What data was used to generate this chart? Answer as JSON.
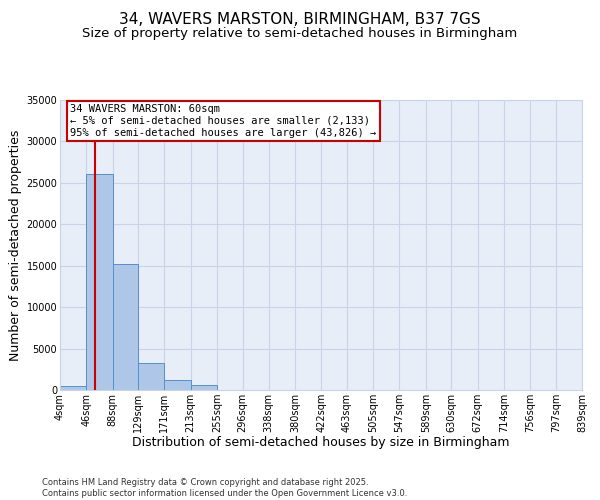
{
  "title_line1": "34, WAVERS MARSTON, BIRMINGHAM, B37 7GS",
  "title_line2": "Size of property relative to semi-detached houses in Birmingham",
  "xlabel": "Distribution of semi-detached houses by size in Birmingham",
  "ylabel": "Number of semi-detached properties",
  "bin_edges": [
    4,
    46,
    88,
    129,
    171,
    213,
    255,
    296,
    338,
    380,
    422,
    463,
    505,
    547,
    589,
    630,
    672,
    714,
    756,
    797,
    839
  ],
  "bar_heights": [
    500,
    26100,
    15200,
    3300,
    1200,
    550,
    0,
    0,
    0,
    0,
    0,
    0,
    0,
    0,
    0,
    0,
    0,
    0,
    0,
    0
  ],
  "bar_color": "#aec6e8",
  "bar_edge_color": "#5590c8",
  "grid_color": "#c8d4e8",
  "background_color": "#e8eef8",
  "red_line_x": 60,
  "red_line_color": "#cc0000",
  "annotation_text": "34 WAVERS MARSTON: 60sqm\n← 5% of semi-detached houses are smaller (2,133)\n95% of semi-detached houses are larger (43,826) →",
  "ylim": [
    0,
    35000
  ],
  "yticks": [
    0,
    5000,
    10000,
    15000,
    20000,
    25000,
    30000,
    35000
  ],
  "footer_text": "Contains HM Land Registry data © Crown copyright and database right 2025.\nContains public sector information licensed under the Open Government Licence v3.0.",
  "title_fontsize": 11,
  "subtitle_fontsize": 9.5,
  "axis_label_fontsize": 9,
  "tick_fontsize": 7,
  "annotation_fontsize": 7.5,
  "footer_fontsize": 6
}
